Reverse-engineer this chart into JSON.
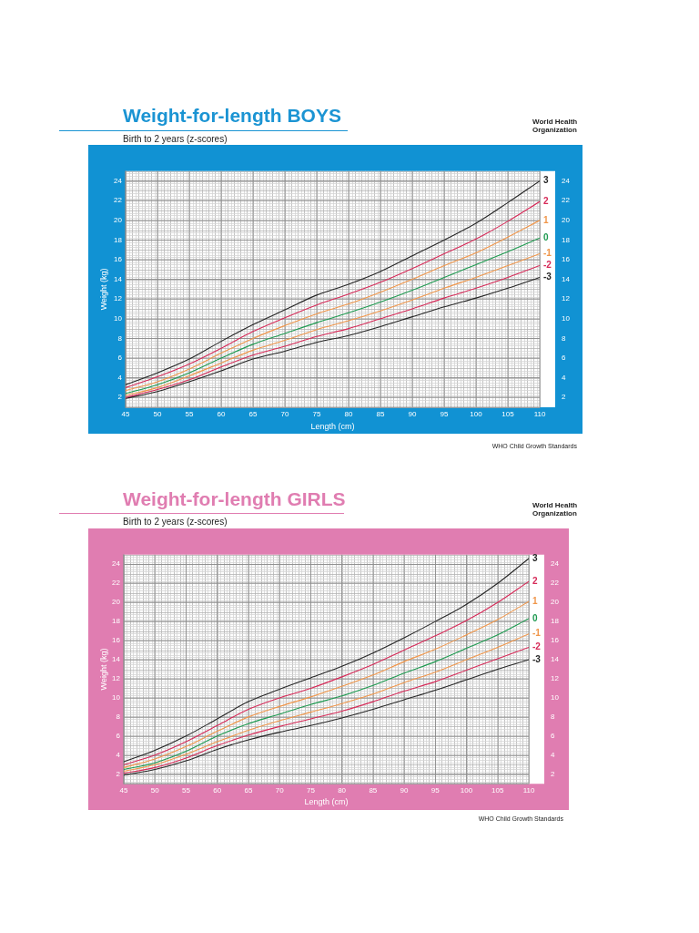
{
  "chart_data": [
    {
      "type": "line",
      "title": "Weight-for-length BOYS",
      "subtitle": "Birth to 2 years (z-scores)",
      "xlabel": "Length (cm)",
      "ylabel": "Weight (kg)",
      "annotations": [
        "WHO Child Growth Standards",
        "World Health Organization"
      ],
      "x": [
        45,
        50,
        55,
        60,
        65,
        70,
        75,
        80,
        85,
        90,
        95,
        100,
        105,
        110
      ],
      "series": [
        {
          "name": "3",
          "color": "#262626",
          "values": [
            3.3,
            4.5,
            5.9,
            7.7,
            9.4,
            10.9,
            12.4,
            13.5,
            14.8,
            16.4,
            18.0,
            19.7,
            21.8,
            24
          ]
        },
        {
          "name": "2",
          "color": "#d62a58",
          "values": [
            3.0,
            4.1,
            5.4,
            7.0,
            8.7,
            10.1,
            11.4,
            12.5,
            13.7,
            15.1,
            16.6,
            18.1,
            19.9,
            21.9
          ]
        },
        {
          "name": "1",
          "color": "#f0964a",
          "values": [
            2.7,
            3.6,
            4.9,
            6.5,
            8.0,
            9.3,
            10.5,
            11.5,
            12.7,
            14.0,
            15.4,
            16.7,
            18.3,
            20
          ]
        },
        {
          "name": "0",
          "color": "#1e9a50",
          "values": [
            2.4,
            3.3,
            4.5,
            6.0,
            7.4,
            8.5,
            9.6,
            10.6,
            11.7,
            12.9,
            14.2,
            15.5,
            16.8,
            18.2
          ]
        },
        {
          "name": "-1",
          "color": "#f0964a",
          "values": [
            2.2,
            3.0,
            4.2,
            5.5,
            6.8,
            7.8,
            8.9,
            9.8,
            10.8,
            11.9,
            13.1,
            14.2,
            15.4,
            16.6
          ]
        },
        {
          "name": "-2",
          "color": "#d62a58",
          "values": [
            2.0,
            2.8,
            3.8,
            5.1,
            6.3,
            7.2,
            8.2,
            9.0,
            10.0,
            11.0,
            12.1,
            13.1,
            14.2,
            15.4
          ]
        },
        {
          "name": "-3",
          "color": "#262626",
          "values": [
            1.9,
            2.6,
            3.6,
            4.7,
            5.9,
            6.7,
            7.6,
            8.3,
            9.2,
            10.2,
            11.2,
            12.1,
            13.1,
            14.2
          ]
        }
      ],
      "xlim": [
        45,
        110
      ],
      "xticks": [
        45,
        50,
        55,
        60,
        65,
        70,
        75,
        80,
        85,
        90,
        95,
        100,
        105,
        110
      ],
      "ylim": [
        1,
        25
      ],
      "yticks": [
        2,
        4,
        6,
        8,
        10,
        12,
        14,
        16,
        18,
        20,
        22,
        24
      ],
      "y2lim": [
        1,
        25
      ],
      "y2ticks": [
        2,
        4,
        6,
        8,
        10,
        12,
        14,
        16,
        18,
        20,
        22,
        24
      ],
      "grid": true,
      "legend": false,
      "marker": "none",
      "line_style": "solid"
    },
    {
      "type": "line",
      "title": "Weight-for-length GIRLS",
      "subtitle": "Birth to 2 years (z-scores)",
      "xlabel": "Length (cm)",
      "ylabel": "Weight (kg)",
      "annotations": [
        "WHO Child Growth Standards",
        "World Health Organization"
      ],
      "x": [
        45,
        50,
        55,
        60,
        65,
        70,
        75,
        80,
        85,
        90,
        95,
        100,
        105,
        110
      ],
      "series": [
        {
          "name": "3",
          "color": "#262626",
          "values": [
            3.3,
            4.5,
            6.0,
            7.8,
            9.6,
            10.9,
            12.1,
            13.3,
            14.7,
            16.3,
            18.0,
            19.8,
            22.0,
            24.6
          ]
        },
        {
          "name": "2",
          "color": "#d62a58",
          "values": [
            3.0,
            4.0,
            5.4,
            7.1,
            8.8,
            10.0,
            11.0,
            12.2,
            13.5,
            15.0,
            16.5,
            18.1,
            20.0,
            22.2
          ]
        },
        {
          "name": "1",
          "color": "#f0964a",
          "values": [
            2.7,
            3.6,
            4.9,
            6.5,
            8.0,
            9.1,
            10.1,
            11.2,
            12.4,
            13.8,
            15.1,
            16.6,
            18.2,
            20.1
          ]
        },
        {
          "name": "0",
          "color": "#1e9a50",
          "values": [
            2.5,
            3.2,
            4.4,
            6.0,
            7.3,
            8.3,
            9.3,
            10.2,
            11.3,
            12.6,
            13.8,
            15.2,
            16.6,
            18.3
          ]
        },
        {
          "name": "-1",
          "color": "#f0964a",
          "values": [
            2.3,
            3.0,
            4.1,
            5.4,
            6.6,
            7.6,
            8.5,
            9.4,
            10.4,
            11.6,
            12.7,
            14.0,
            15.3,
            16.7
          ]
        },
        {
          "name": "-2",
          "color": "#d62a58",
          "values": [
            2.1,
            2.7,
            3.7,
            5.0,
            6.1,
            7.0,
            7.8,
            8.6,
            9.6,
            10.7,
            11.7,
            12.9,
            14.1,
            15.3
          ]
        },
        {
          "name": "-3",
          "color": "#262626",
          "values": [
            1.9,
            2.5,
            3.4,
            4.6,
            5.6,
            6.4,
            7.1,
            7.9,
            8.8,
            9.8,
            10.8,
            11.9,
            13.0,
            14.0
          ]
        }
      ],
      "xlim": [
        45,
        110
      ],
      "xticks": [
        45,
        50,
        55,
        60,
        65,
        70,
        75,
        80,
        85,
        90,
        95,
        100,
        105,
        110
      ],
      "ylim": [
        1,
        25
      ],
      "yticks": [
        2,
        4,
        6,
        8,
        10,
        12,
        14,
        16,
        18,
        20,
        22,
        24
      ],
      "y2lim": [
        1,
        25
      ],
      "y2ticks": [
        2,
        4,
        6,
        8,
        10,
        12,
        14,
        16,
        18,
        20,
        22,
        24
      ],
      "grid": true,
      "legend": false,
      "marker": "none",
      "line_style": "solid"
    }
  ]
}
